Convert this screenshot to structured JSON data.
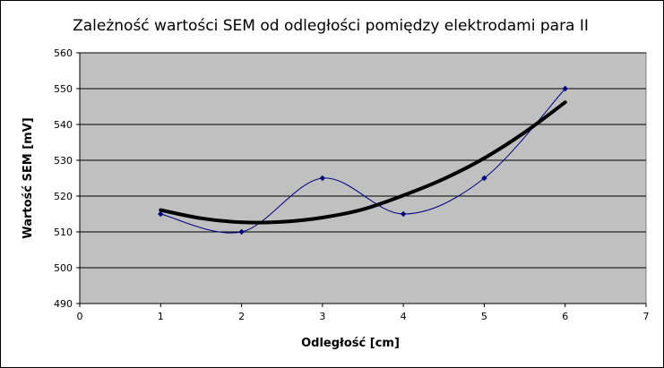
{
  "chart_data": {
    "type": "scatter",
    "title": "Zależność wartości SEM od odległości pomiędzy elektrodami para II",
    "xlabel": "Odległość [cm]",
    "ylabel": "Wartość SEM [mV]",
    "xlim": [
      0,
      7
    ],
    "ylim": [
      490,
      560
    ],
    "x_ticks": [
      0,
      1,
      2,
      3,
      4,
      5,
      6,
      7
    ],
    "y_ticks": [
      490,
      500,
      510,
      520,
      530,
      540,
      550,
      560
    ],
    "grid": "horizontal",
    "legend": "none",
    "plot_background": "#c0c0c0",
    "series": [
      {
        "kind": "scatter-smooth",
        "color": "#000080",
        "points": [
          [
            1,
            515
          ],
          [
            2,
            510
          ],
          [
            3,
            525
          ],
          [
            4,
            515
          ],
          [
            5,
            525
          ],
          [
            6,
            550
          ]
        ]
      },
      {
        "kind": "trendline",
        "color": "#000000",
        "points": [
          [
            1,
            516.1
          ],
          [
            1.5,
            513.8
          ],
          [
            2,
            512.7
          ],
          [
            2.5,
            512.8
          ],
          [
            3,
            514.0
          ],
          [
            3.5,
            516.3
          ],
          [
            4,
            520.2
          ],
          [
            4.5,
            524.8
          ],
          [
            5,
            530.6
          ],
          [
            5.5,
            537.8
          ],
          [
            6,
            546.2
          ]
        ]
      }
    ]
  }
}
